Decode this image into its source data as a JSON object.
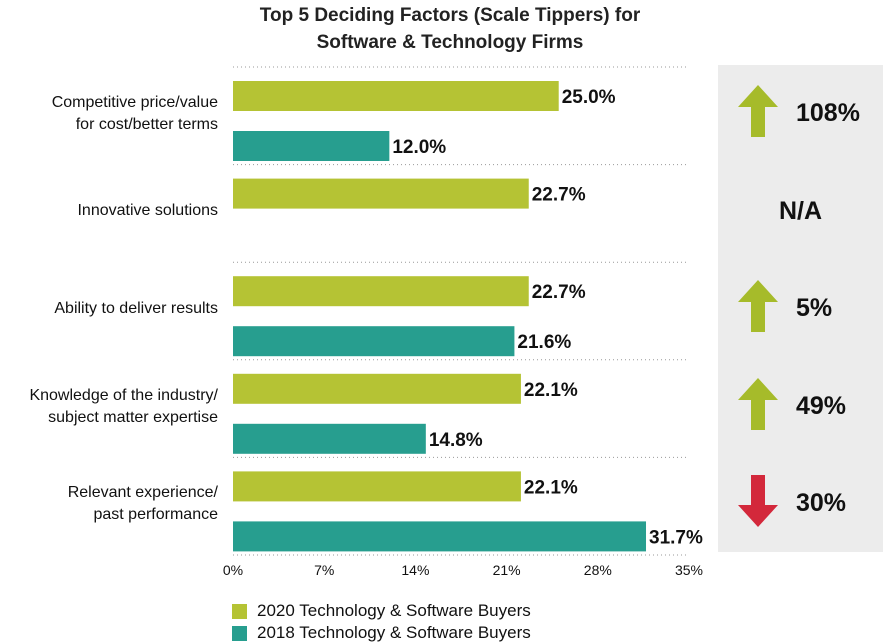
{
  "title_line1": "Top 5 Deciding Factors (Scale Tippers) for",
  "title_line2": "Software & Technology Firms",
  "colors": {
    "series2020": "#b5c334",
    "series2018": "#279e8f",
    "up": "#a6bb2a",
    "down": "#d3283b",
    "panel": "#ececec"
  },
  "chart_data": {
    "type": "bar",
    "orientation": "horizontal",
    "title": "Top 5 Deciding Factors (Scale Tippers) for Software & Technology Firms",
    "categories": [
      [
        "Competitive price/value",
        "for cost/better terms"
      ],
      [
        "Innovative solutions"
      ],
      [
        "Ability to deliver results"
      ],
      [
        "Knowledge of the industry/",
        "subject matter expertise"
      ],
      [
        "Relevant experience/",
        "past performance"
      ]
    ],
    "series": [
      {
        "name": "2020 Technology & Software Buyers",
        "values": [
          25.0,
          22.7,
          22.7,
          22.1,
          22.1
        ],
        "labels": [
          "25.0%",
          "22.7%",
          "22.7%",
          "22.1%",
          "22.1%"
        ]
      },
      {
        "name": "2018 Technology & Software Buyers",
        "values": [
          12.0,
          null,
          21.6,
          14.8,
          31.7
        ],
        "labels": [
          "12.0%",
          "",
          "21.6%",
          "14.8%",
          "31.7%"
        ]
      }
    ],
    "xlim": [
      0,
      35
    ],
    "xticks": [
      "0%",
      "7%",
      "14%",
      "21%",
      "28%",
      "35%"
    ],
    "grid": "dotted separators between categories",
    "legend": "bottom"
  },
  "changes": [
    {
      "text": "108%",
      "direction": "up"
    },
    {
      "text": "N/A",
      "direction": "none"
    },
    {
      "text": "5%",
      "direction": "up"
    },
    {
      "text": "49%",
      "direction": "up"
    },
    {
      "text": "30%",
      "direction": "down"
    }
  ],
  "legend": [
    {
      "label": "2020 Technology & Software Buyers"
    },
    {
      "label": "2018 Technology & Software Buyers"
    }
  ]
}
